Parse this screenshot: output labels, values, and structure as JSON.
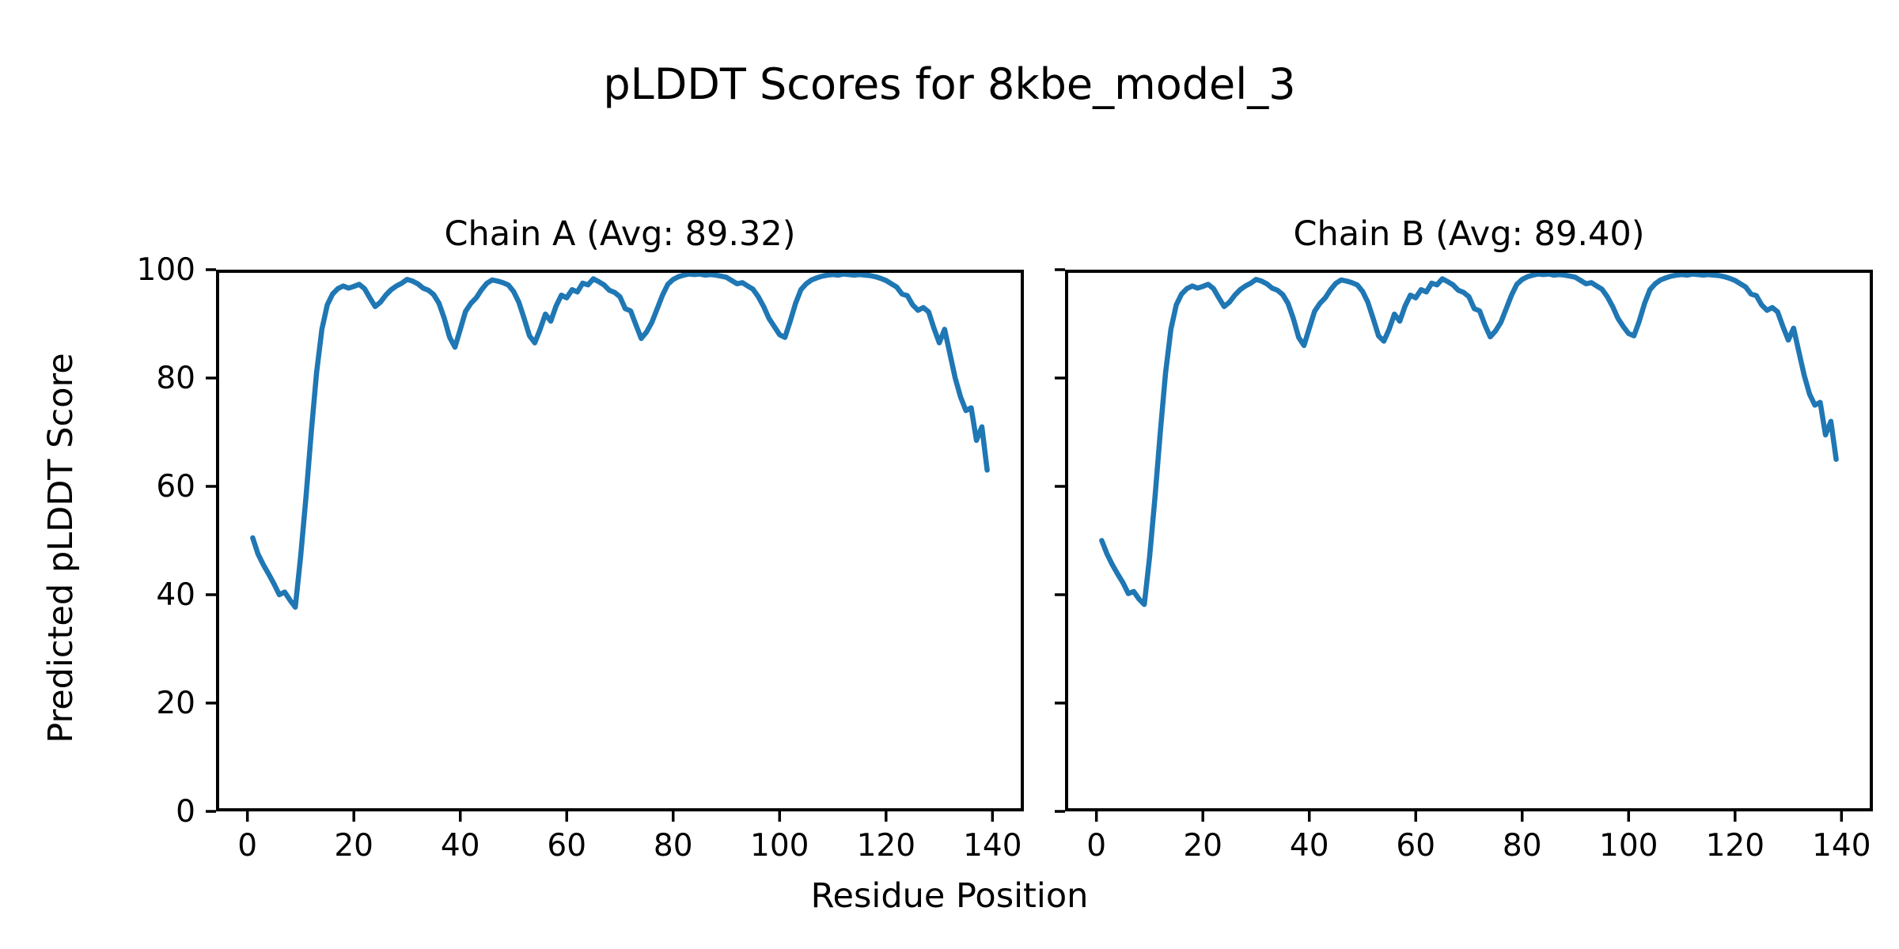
{
  "figure": {
    "suptitle": "pLDDT Scores for 8kbe_model_3",
    "xlabel": "Residue Position",
    "ylabel": "Predicted pLDDT Score",
    "background_color": "#ffffff",
    "text_color": "#000000",
    "accent_line_color": "#1f77b4"
  },
  "chart_data": [
    {
      "type": "line",
      "title": "Chain A (Avg: 89.32)",
      "series_name": "Chain A pLDDT",
      "average": 89.32,
      "line_color": "#1f77b4",
      "xlim": [
        -5.9,
        145.9
      ],
      "ylim": [
        0,
        100
      ],
      "x_ticks": [
        0,
        20,
        40,
        60,
        80,
        100,
        120,
        140
      ],
      "y_ticks": [
        0,
        20,
        40,
        60,
        80,
        100
      ],
      "show_y_tick_labels": true,
      "grid": false,
      "legend": "none",
      "x_start": 1,
      "x_step": 1,
      "values": [
        50.5,
        47.5,
        45.5,
        43.8,
        42.0,
        40.0,
        40.5,
        39.0,
        37.7,
        47.0,
        58.0,
        70.0,
        81.0,
        89.0,
        93.5,
        95.5,
        96.5,
        97.0,
        96.6,
        96.9,
        97.3,
        96.5,
        94.8,
        93.2,
        94.0,
        95.3,
        96.3,
        97.0,
        97.5,
        98.2,
        97.9,
        97.4,
        96.6,
        96.2,
        95.4,
        93.8,
        91.0,
        87.5,
        85.7,
        89.0,
        92.3,
        93.8,
        94.8,
        96.3,
        97.5,
        98.1,
        97.9,
        97.6,
        97.2,
        96.0,
        94.0,
        91.0,
        87.8,
        86.5,
        89.0,
        91.8,
        90.5,
        93.3,
        95.3,
        94.8,
        96.3,
        95.9,
        97.5,
        97.2,
        98.3,
        97.8,
        97.2,
        96.2,
        95.8,
        95.0,
        92.8,
        92.4,
        89.8,
        87.3,
        88.5,
        90.3,
        92.8,
        95.3,
        97.3,
        98.2,
        98.7,
        99.0,
        99.2,
        99.1,
        99.2,
        99.0,
        99.1,
        99.0,
        98.8,
        98.6,
        98.0,
        97.4,
        97.6,
        97.0,
        96.4,
        95.0,
        93.2,
        91.0,
        89.5,
        88.0,
        87.5,
        90.5,
        93.8,
        96.3,
        97.4,
        98.1,
        98.5,
        98.8,
        99.0,
        99.1,
        99.0,
        99.2,
        99.1,
        99.0,
        99.1,
        99.0,
        98.9,
        98.7,
        98.4,
        98.0,
        97.4,
        96.8,
        95.5,
        95.2,
        93.5,
        92.5,
        93.0,
        92.2,
        89.2,
        86.5,
        89.0,
        84.5,
        80.0,
        76.5,
        74.0,
        74.5,
        68.5,
        71.0,
        63.0
      ]
    },
    {
      "type": "line",
      "title": "Chain B (Avg: 89.40)",
      "series_name": "Chain B pLDDT",
      "average": 89.4,
      "line_color": "#1f77b4",
      "xlim": [
        -5.9,
        145.9
      ],
      "ylim": [
        0,
        100
      ],
      "x_ticks": [
        0,
        20,
        40,
        60,
        80,
        100,
        120,
        140
      ],
      "y_ticks": [
        0,
        20,
        40,
        60,
        80,
        100
      ],
      "show_y_tick_labels": false,
      "grid": false,
      "legend": "none",
      "x_start": 1,
      "x_step": 1,
      "values": [
        50.0,
        47.5,
        45.5,
        43.8,
        42.2,
        40.2,
        40.6,
        39.2,
        38.2,
        47.0,
        58.0,
        70.0,
        81.0,
        89.0,
        93.5,
        95.5,
        96.5,
        97.0,
        96.6,
        96.9,
        97.3,
        96.5,
        94.8,
        93.2,
        94.0,
        95.3,
        96.3,
        97.0,
        97.5,
        98.2,
        97.9,
        97.4,
        96.6,
        96.2,
        95.4,
        93.8,
        91.0,
        87.5,
        86.0,
        89.2,
        92.3,
        93.8,
        94.8,
        96.3,
        97.5,
        98.1,
        97.9,
        97.6,
        97.2,
        96.0,
        94.0,
        91.0,
        87.8,
        86.8,
        89.0,
        91.8,
        90.5,
        93.3,
        95.3,
        94.8,
        96.3,
        95.9,
        97.5,
        97.2,
        98.3,
        97.8,
        97.2,
        96.2,
        95.8,
        95.0,
        92.8,
        92.4,
        89.8,
        87.6,
        88.7,
        90.3,
        92.8,
        95.3,
        97.3,
        98.2,
        98.7,
        99.0,
        99.2,
        99.1,
        99.2,
        99.0,
        99.1,
        99.0,
        98.8,
        98.6,
        98.0,
        97.4,
        97.6,
        97.0,
        96.4,
        95.0,
        93.2,
        91.0,
        89.5,
        88.2,
        87.8,
        90.5,
        93.8,
        96.3,
        97.4,
        98.1,
        98.5,
        98.8,
        99.0,
        99.1,
        99.0,
        99.2,
        99.1,
        99.0,
        99.1,
        99.0,
        98.9,
        98.7,
        98.4,
        98.0,
        97.4,
        96.8,
        95.5,
        95.2,
        93.5,
        92.5,
        93.0,
        92.2,
        89.5,
        87.0,
        89.2,
        84.8,
        80.5,
        77.0,
        75.0,
        75.5,
        69.5,
        72.0,
        65.0
      ]
    }
  ],
  "style": {
    "spine_color": "#000000",
    "tick_color": "#000000"
  }
}
